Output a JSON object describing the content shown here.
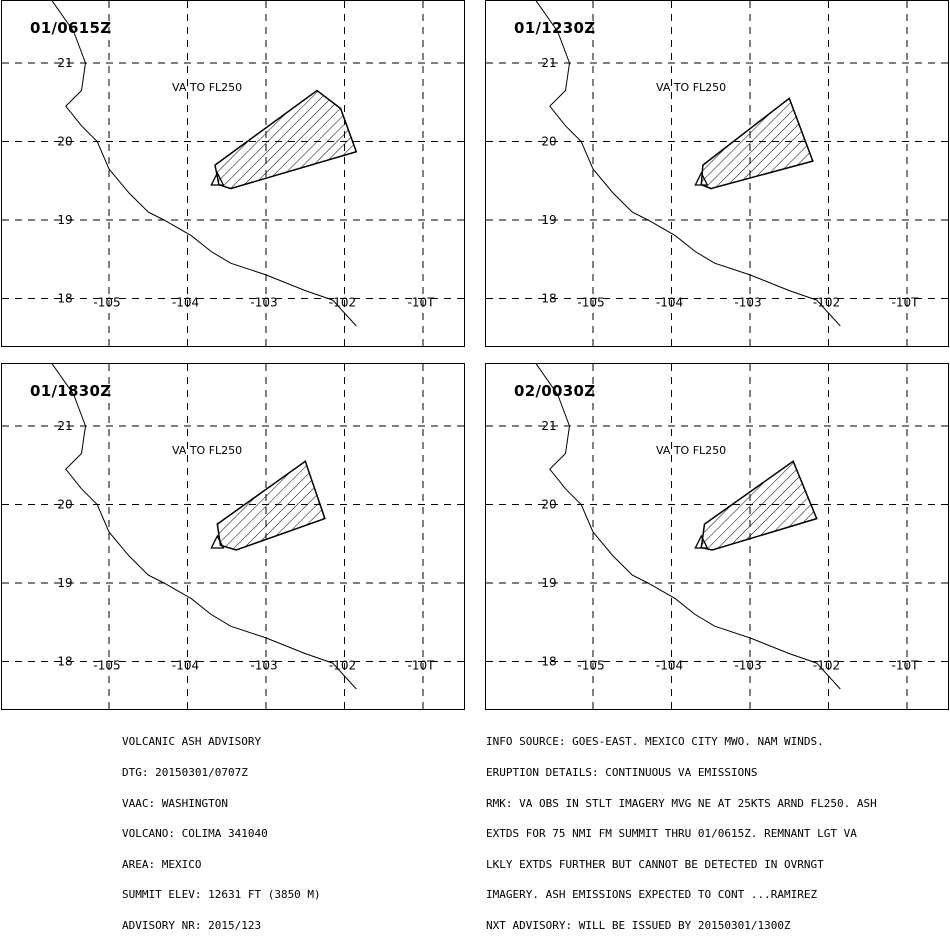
{
  "panels": [
    {
      "title": "01/0615Z",
      "label": "VA TO FL250",
      "polygon": [
        [
          -103.65,
          19.7
        ],
        [
          -102.35,
          20.65
        ],
        [
          -102.05,
          20.42
        ],
        [
          -101.85,
          19.87
        ],
        [
          -103.45,
          19.4
        ],
        [
          -103.6,
          19.45
        ]
      ]
    },
    {
      "title": "01/1230Z",
      "label": "VA TO FL250",
      "polygon": [
        [
          -103.6,
          19.7
        ],
        [
          -102.5,
          20.55
        ],
        [
          -102.2,
          19.75
        ],
        [
          -103.5,
          19.4
        ],
        [
          -103.62,
          19.45
        ]
      ]
    },
    {
      "title": "01/1830Z",
      "label": "VA TO FL250",
      "polygon": [
        [
          -103.62,
          19.75
        ],
        [
          -102.5,
          20.55
        ],
        [
          -102.25,
          19.82
        ],
        [
          -103.38,
          19.42
        ],
        [
          -103.58,
          19.48
        ]
      ]
    },
    {
      "title": "02/0030Z",
      "label": "VA TO FL250",
      "polygon": [
        [
          -103.58,
          19.75
        ],
        [
          -102.45,
          20.55
        ],
        [
          -102.15,
          19.82
        ],
        [
          -103.48,
          19.42
        ],
        [
          -103.62,
          19.45
        ]
      ]
    }
  ],
  "axes": {
    "lon_ticks": [
      -105,
      -104,
      -103,
      -102,
      -101
    ],
    "lon_labels": [
      "-105",
      "-104",
      "-103",
      "-102",
      "-10T"
    ],
    "lat_ticks": [
      21,
      20,
      19,
      18
    ],
    "lat_labels": [
      "21",
      "20",
      "19",
      "18"
    ]
  },
  "volcano": {
    "lon": -103.62,
    "lat": 19.51
  },
  "coastline": [
    [
      -105.8,
      21.9
    ],
    [
      -105.45,
      21.4
    ],
    [
      -105.3,
      21.0
    ],
    [
      -105.35,
      20.65
    ],
    [
      -105.55,
      20.45
    ],
    [
      -105.35,
      20.2
    ],
    [
      -105.15,
      20.0
    ],
    [
      -105.0,
      19.65
    ],
    [
      -104.75,
      19.35
    ],
    [
      -104.5,
      19.1
    ],
    [
      -104.3,
      19.0
    ],
    [
      -103.95,
      18.8
    ],
    [
      -103.7,
      18.6
    ],
    [
      -103.45,
      18.45
    ],
    [
      -103.0,
      18.3
    ],
    [
      -102.5,
      18.1
    ],
    [
      -102.15,
      17.98
    ],
    [
      -101.85,
      17.65
    ]
  ],
  "advisory_left": [
    "VOLCANIC ASH ADVISORY",
    "DTG: 20150301/0707Z",
    "VAAC: WASHINGTON",
    "VOLCANO: COLIMA 341040",
    "AREA: MEXICO",
    "SUMMIT ELEV: 12631 FT (3850 M)",
    "ADVISORY NR: 2015/123"
  ],
  "advisory_right": [
    "INFO SOURCE: GOES-EAST. MEXICO CITY MWO. NAM WINDS.",
    "ERUPTION DETAILS: CONTINUOUS VA EMISSIONS",
    "RMK: VA OBS IN STLT IMAGERY MVG NE AT 25KTS ARND FL250. ASH",
    "EXTDS FOR 75 NMI FM SUMMIT THRU 01/0615Z. REMNANT LGT VA",
    "LKLY EXTDS FURTHER BUT CANNOT BE DETECTED IN OVRNGT",
    "IMAGERY. ASH EMISSIONS EXPECTED TO CONT ...RAMIREZ",
    "NXT ADVISORY: WILL BE ISSUED BY 20150301/1300Z"
  ]
}
